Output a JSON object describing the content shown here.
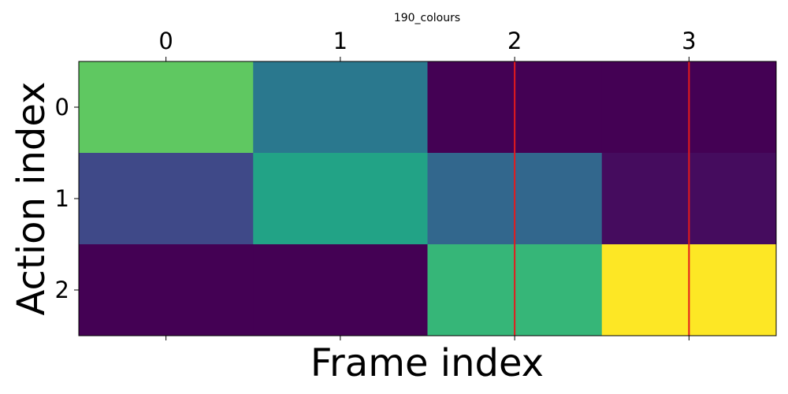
{
  "chart_data": {
    "type": "heatmap",
    "title": "190_colours",
    "xlabel": "Frame index",
    "ylabel": "Action index",
    "x_tick_labels": [
      "0",
      "1",
      "2",
      "3"
    ],
    "y_tick_labels": [
      "0",
      "1",
      "2"
    ],
    "x_ticks_position": "top",
    "colormap": "viridis",
    "values": [
      [
        0.75,
        0.4,
        0.0,
        0.0
      ],
      [
        0.22,
        0.58,
        0.33,
        0.03
      ],
      [
        0.0,
        0.0,
        0.66,
        1.0
      ]
    ],
    "vertical_markers": {
      "color": "#e41a1c",
      "x": [
        2,
        3
      ]
    }
  }
}
